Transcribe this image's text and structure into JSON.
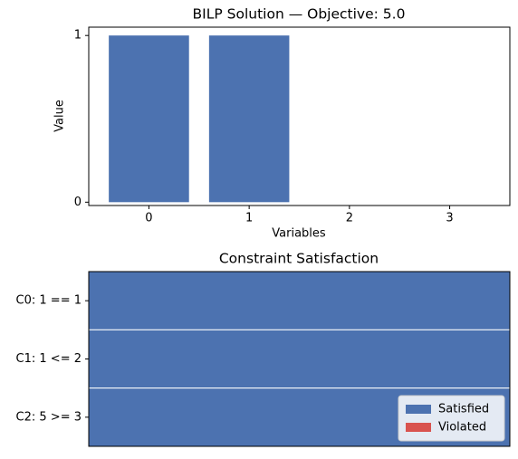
{
  "chart_data": [
    {
      "type": "bar",
      "title": "BILP Solution — Objective: 5.0",
      "x_label": "Variables",
      "y_label": "Value",
      "x": [
        0,
        1,
        2,
        3
      ],
      "values": [
        1,
        1,
        0,
        0
      ],
      "color": "#4c72b0",
      "xlim": [
        -0.6,
        3.6
      ],
      "xticks": [
        0,
        1,
        2,
        3
      ],
      "ylim": [
        -0.02,
        1.05
      ],
      "yticks": [
        0,
        1
      ]
    },
    {
      "type": "barh",
      "title": "Constraint Satisfaction",
      "categories": [
        "C0: 1 == 1",
        "C1: 1 <= 2",
        "C2: 5 >= 3"
      ],
      "series": [
        {
          "name": "Satisfied",
          "color": "#4c72b0",
          "values": [
            1,
            1,
            1
          ]
        },
        {
          "name": "Violated",
          "color": "#d9534f",
          "values": [
            0,
            0,
            0
          ]
        }
      ],
      "xlim": [
        0,
        1
      ],
      "legend": "lower right"
    }
  ]
}
